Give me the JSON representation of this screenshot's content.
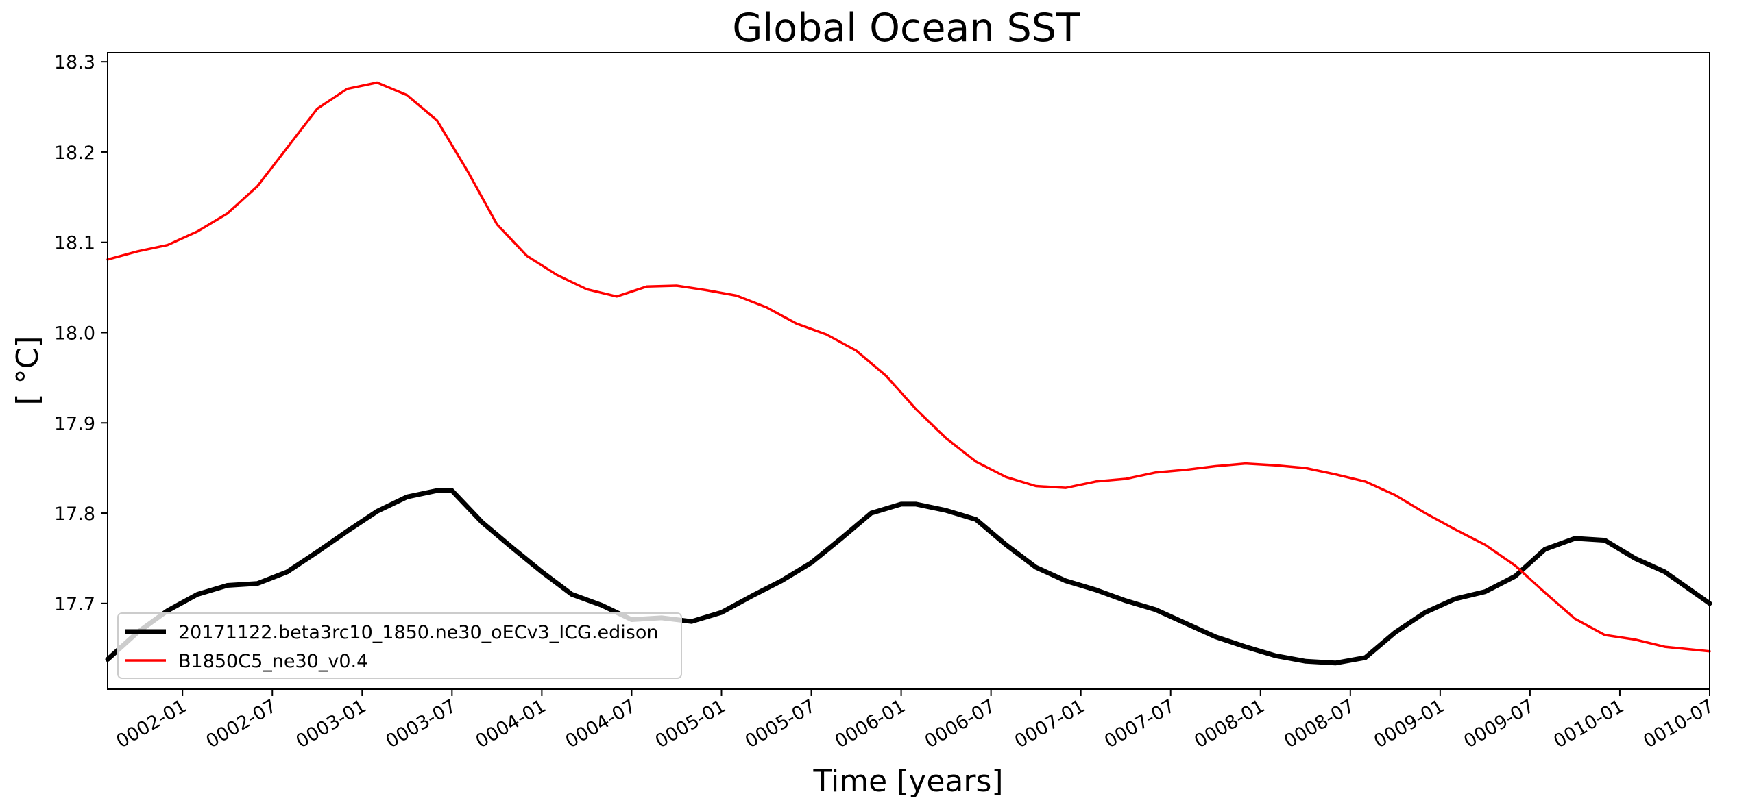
{
  "chart_data": {
    "type": "line",
    "title": "Global Ocean SST",
    "xlabel": "Time [years]",
    "ylabel": "[ °C]",
    "xlim": [
      "0001-08",
      "0010-07"
    ],
    "ylim": [
      17.605,
      18.31
    ],
    "x_ticks": [
      "0002-01",
      "0002-07",
      "0003-01",
      "0003-07",
      "0004-01",
      "0004-07",
      "0005-01",
      "0005-07",
      "0006-01",
      "0006-07",
      "0007-01",
      "0007-07",
      "0008-01",
      "0008-07",
      "0009-01",
      "0009-07",
      "0010-01",
      "0010-07"
    ],
    "y_ticks": [
      "17.7",
      "17.8",
      "17.9",
      "18.0",
      "18.1",
      "18.2",
      "18.3"
    ],
    "y_tick_values": [
      17.7,
      17.8,
      17.9,
      18.0,
      18.1,
      18.2,
      18.3
    ],
    "grid": false,
    "legend": "lower-left",
    "series": [
      {
        "name": "20171122.beta3rc10_1850.ne30_oECv3_ICG.edison",
        "color": "#000000",
        "x": [
          "0001-08",
          "0001-10",
          "0001-12",
          "0002-02",
          "0002-04",
          "0002-06",
          "0002-08",
          "0002-10",
          "0002-12",
          "0003-02",
          "0003-04",
          "0003-06",
          "0003-07",
          "0003-09",
          "0003-11",
          "0004-01",
          "0004-03",
          "0004-05",
          "0004-07",
          "0004-09",
          "0004-11",
          "0005-01",
          "0005-03",
          "0005-05",
          "0005-07",
          "0005-09",
          "0005-11",
          "0006-01",
          "0006-02",
          "0006-04",
          "0006-06",
          "0006-08",
          "0006-10",
          "0006-12",
          "0007-02",
          "0007-04",
          "0007-06",
          "0007-08",
          "0007-10",
          "0007-12",
          "0008-02",
          "0008-04",
          "0008-06",
          "0008-08",
          "0008-10",
          "0008-12",
          "0009-02",
          "0009-04",
          "0009-06",
          "0009-08",
          "0009-10",
          "0009-12",
          "0010-02",
          "0010-04",
          "0010-07"
        ],
        "values": [
          17.638,
          17.668,
          17.692,
          17.71,
          17.72,
          17.722,
          17.735,
          17.757,
          17.78,
          17.802,
          17.818,
          17.825,
          17.825,
          17.79,
          17.762,
          17.735,
          17.71,
          17.698,
          17.682,
          17.684,
          17.68,
          17.69,
          17.708,
          17.725,
          17.745,
          17.772,
          17.8,
          17.81,
          17.81,
          17.803,
          17.793,
          17.765,
          17.74,
          17.725,
          17.715,
          17.703,
          17.693,
          17.678,
          17.663,
          17.652,
          17.642,
          17.636,
          17.634,
          17.64,
          17.668,
          17.69,
          17.705,
          17.713,
          17.73,
          17.76,
          17.772,
          17.77,
          17.75,
          17.735,
          17.7
        ]
      },
      {
        "name": "B1850C5_ne30_v0.4",
        "color": "#ff0000",
        "x": [
          "0001-08",
          "0001-10",
          "0001-12",
          "0002-02",
          "0002-04",
          "0002-06",
          "0002-08",
          "0002-10",
          "0002-12",
          "0003-02",
          "0003-04",
          "0003-06",
          "0003-08",
          "0003-10",
          "0003-12",
          "0004-02",
          "0004-04",
          "0004-06",
          "0004-08",
          "0004-10",
          "0004-12",
          "0005-02",
          "0005-04",
          "0005-06",
          "0005-08",
          "0005-10",
          "0005-12",
          "0006-02",
          "0006-04",
          "0006-06",
          "0006-08",
          "0006-10",
          "0006-12",
          "0007-02",
          "0007-04",
          "0007-06",
          "0007-08",
          "0007-10",
          "0007-12",
          "0008-02",
          "0008-04",
          "0008-06",
          "0008-08",
          "0008-10",
          "0008-12",
          "0009-02",
          "0009-04",
          "0009-06",
          "0009-08",
          "0009-10",
          "0009-12",
          "0010-02",
          "0010-04",
          "0010-07"
        ],
        "values": [
          18.081,
          18.09,
          18.097,
          18.112,
          18.132,
          18.162,
          18.205,
          18.248,
          18.27,
          18.277,
          18.263,
          18.235,
          18.18,
          18.12,
          18.085,
          18.064,
          18.048,
          18.04,
          18.051,
          18.052,
          18.047,
          18.041,
          18.028,
          18.01,
          17.998,
          17.98,
          17.952,
          17.915,
          17.883,
          17.857,
          17.84,
          17.83,
          17.828,
          17.835,
          17.838,
          17.845,
          17.848,
          17.852,
          17.855,
          17.853,
          17.85,
          17.843,
          17.835,
          17.82,
          17.8,
          17.782,
          17.765,
          17.742,
          17.712,
          17.683,
          17.665,
          17.66,
          17.652,
          17.647
        ]
      }
    ]
  }
}
